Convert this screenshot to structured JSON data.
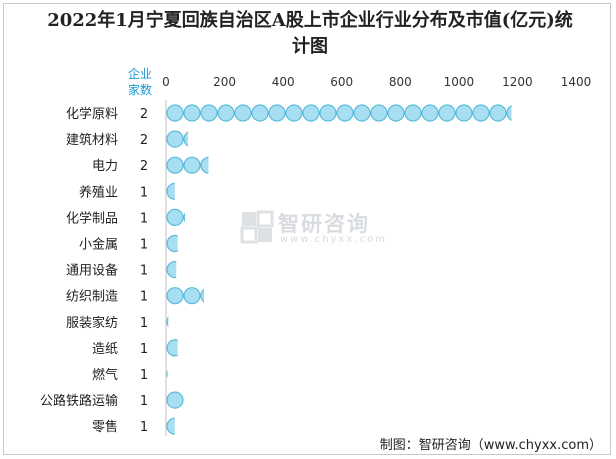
{
  "chart_data": {
    "type": "bar",
    "title": "2022年1月宁夏回族自治区A股上市企业行业分布及市值(亿元)统计图",
    "count_header": "企业家数",
    "xlim": [
      0,
      1400
    ],
    "x_ticks": [
      "0",
      "200",
      "400",
      "600",
      "800",
      "1000",
      "1200",
      "1400"
    ],
    "categories": [
      "化学原料",
      "建筑材料",
      "电力",
      "养殖业",
      "化学制品",
      "小金属",
      "通用设备",
      "纺织制造",
      "服装家纺",
      "造纸",
      "燃气",
      "公路铁路运输",
      "零售"
    ],
    "counts": [
      "2",
      "2",
      "2",
      "1",
      "1",
      "1",
      "1",
      "1",
      "1",
      "1",
      "1",
      "1",
      "1"
    ],
    "values": [
      1180,
      75,
      145,
      30,
      65,
      40,
      35,
      130,
      8,
      40,
      5,
      60,
      30
    ],
    "bar_color": "#a8def2",
    "bar_stroke": "#5bbcd9",
    "grid": false,
    "legend": "none"
  },
  "footer": "制图：智研咨询（www.chyxx.com）",
  "watermark": {
    "name": "智研咨询",
    "url": "www.chyxx.com"
  }
}
